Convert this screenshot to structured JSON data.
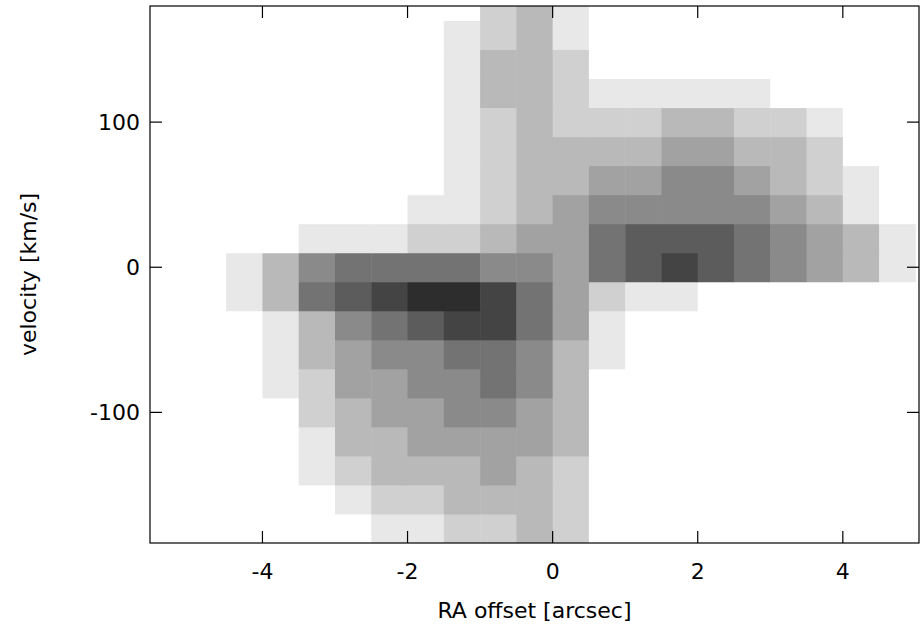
{
  "chart_data": {
    "type": "heatmap",
    "x_label": "RA offset [arcsec]",
    "y_label": "velocity [km/s]",
    "xlim": [
      -5.55,
      5.05
    ],
    "ylim": [
      -190,
      180
    ],
    "xticks": [
      -4,
      -2,
      0,
      2,
      4
    ],
    "yticks": [
      -100,
      0,
      100
    ],
    "zlim": [
      0,
      9
    ],
    "x": [
      -5.25,
      -4.75,
      -4.25,
      -3.75,
      -3.25,
      -2.75,
      -2.25,
      -1.75,
      -1.25,
      -0.75,
      -0.25,
      0.25,
      0.75,
      1.25,
      1.75,
      2.25,
      2.75,
      3.25,
      3.75,
      4.25,
      4.75
    ],
    "y": [
      -180,
      -160,
      -140,
      -120,
      -100,
      -80,
      -60,
      -40,
      -20,
      0,
      20,
      40,
      60,
      80,
      100,
      120,
      140,
      160,
      180
    ],
    "z": [
      [
        0,
        0,
        0,
        0,
        0,
        0,
        1,
        1,
        2,
        2,
        3,
        2,
        0,
        0,
        0,
        0,
        0,
        0,
        0,
        0,
        0
      ],
      [
        0,
        0,
        0,
        0,
        0,
        1,
        2,
        2,
        3,
        3,
        3,
        2,
        0,
        0,
        0,
        0,
        0,
        0,
        0,
        0,
        0
      ],
      [
        0,
        0,
        0,
        0,
        1,
        2,
        3,
        3,
        3,
        4,
        3,
        2,
        0,
        0,
        0,
        0,
        0,
        0,
        0,
        0,
        0
      ],
      [
        0,
        0,
        0,
        0,
        1,
        3,
        3,
        4,
        4,
        4,
        4,
        3,
        0,
        0,
        0,
        0,
        0,
        0,
        0,
        0,
        0
      ],
      [
        0,
        0,
        0,
        0,
        2,
        3,
        4,
        4,
        5,
        5,
        4,
        3,
        0,
        0,
        0,
        0,
        0,
        0,
        0,
        0,
        0
      ],
      [
        0,
        0,
        0,
        1,
        2,
        4,
        4,
        5,
        5,
        6,
        5,
        3,
        0,
        0,
        0,
        0,
        0,
        0,
        0,
        0,
        0
      ],
      [
        0,
        0,
        0,
        1,
        3,
        4,
        5,
        5,
        6,
        6,
        5,
        3,
        1,
        0,
        0,
        0,
        0,
        0,
        0,
        0,
        0
      ],
      [
        0,
        0,
        0,
        1,
        3,
        5,
        6,
        7,
        8,
        8,
        6,
        4,
        1,
        0,
        0,
        0,
        0,
        0,
        0,
        0,
        0
      ],
      [
        0,
        0,
        1,
        3,
        6,
        7,
        8,
        9,
        9,
        8,
        6,
        4,
        2,
        1,
        1,
        0,
        0,
        0,
        0,
        0,
        0
      ],
      [
        0,
        0,
        1,
        3,
        5,
        6,
        6,
        6,
        6,
        5,
        5,
        4,
        6,
        7,
        8,
        7,
        6,
        5,
        4,
        3,
        1
      ],
      [
        0,
        0,
        0,
        0,
        1,
        1,
        1,
        2,
        2,
        3,
        4,
        4,
        6,
        7,
        7,
        7,
        6,
        5,
        4,
        3,
        1
      ],
      [
        0,
        0,
        0,
        0,
        0,
        0,
        0,
        1,
        1,
        2,
        3,
        4,
        5,
        5,
        5,
        5,
        5,
        4,
        3,
        1,
        0
      ],
      [
        0,
        0,
        0,
        0,
        0,
        0,
        0,
        0,
        1,
        2,
        3,
        3,
        4,
        4,
        5,
        5,
        4,
        3,
        2,
        1,
        0
      ],
      [
        0,
        0,
        0,
        0,
        0,
        0,
        0,
        0,
        1,
        2,
        3,
        3,
        3,
        3,
        4,
        4,
        3,
        3,
        2,
        0,
        0
      ],
      [
        0,
        0,
        0,
        0,
        0,
        0,
        0,
        0,
        1,
        2,
        3,
        2,
        2,
        2,
        3,
        3,
        2,
        2,
        1,
        0,
        0
      ],
      [
        0,
        0,
        0,
        0,
        0,
        0,
        0,
        0,
        1,
        3,
        3,
        2,
        1,
        1,
        1,
        1,
        1,
        0,
        0,
        0,
        0
      ],
      [
        0,
        0,
        0,
        0,
        0,
        0,
        0,
        0,
        1,
        3,
        3,
        2,
        0,
        0,
        0,
        0,
        0,
        0,
        0,
        0,
        0
      ],
      [
        0,
        0,
        0,
        0,
        0,
        0,
        0,
        0,
        1,
        2,
        3,
        1,
        0,
        0,
        0,
        0,
        0,
        0,
        0,
        0,
        0
      ],
      [
        0,
        0,
        0,
        0,
        0,
        0,
        0,
        0,
        0,
        2,
        3,
        1,
        0,
        0,
        0,
        0,
        0,
        0,
        0,
        0,
        0
      ]
    ]
  }
}
